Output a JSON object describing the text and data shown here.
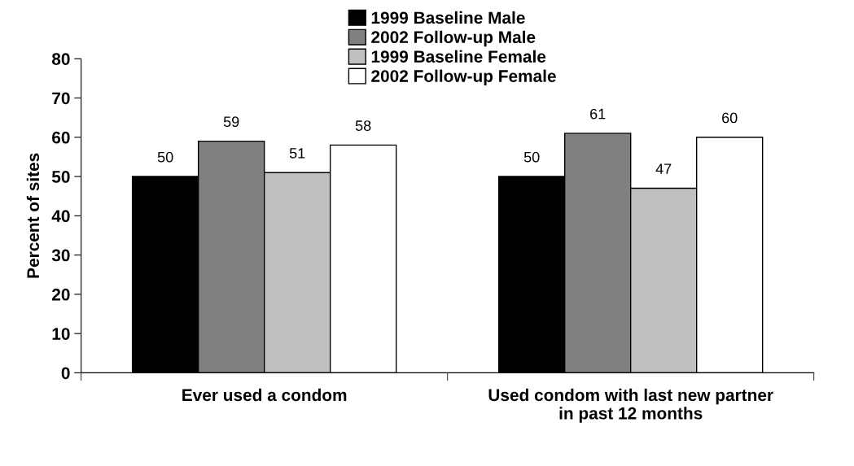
{
  "chart_data": {
    "type": "bar",
    "ylabel": "Percent of sites",
    "categories": [
      "Ever used a condom",
      "Used condom with last new partner\nin past 12 months"
    ],
    "series": [
      {
        "name": "1999 Baseline Male",
        "color": "#000000",
        "values": [
          50,
          50
        ]
      },
      {
        "name": "2002 Follow-up Male",
        "color": "#808080",
        "values": [
          59,
          61
        ]
      },
      {
        "name": "1999 Baseline Female",
        "color": "#c0c0c0",
        "values": [
          51,
          47
        ]
      },
      {
        "name": "2002 Follow-up Female",
        "color": "#ffffff",
        "values": [
          58,
          60
        ]
      }
    ],
    "ylim": [
      0,
      80
    ],
    "yticks": [
      0,
      10,
      20,
      30,
      40,
      50,
      60,
      70,
      80
    ],
    "data_labels": true,
    "legend": "top",
    "grid": false
  }
}
